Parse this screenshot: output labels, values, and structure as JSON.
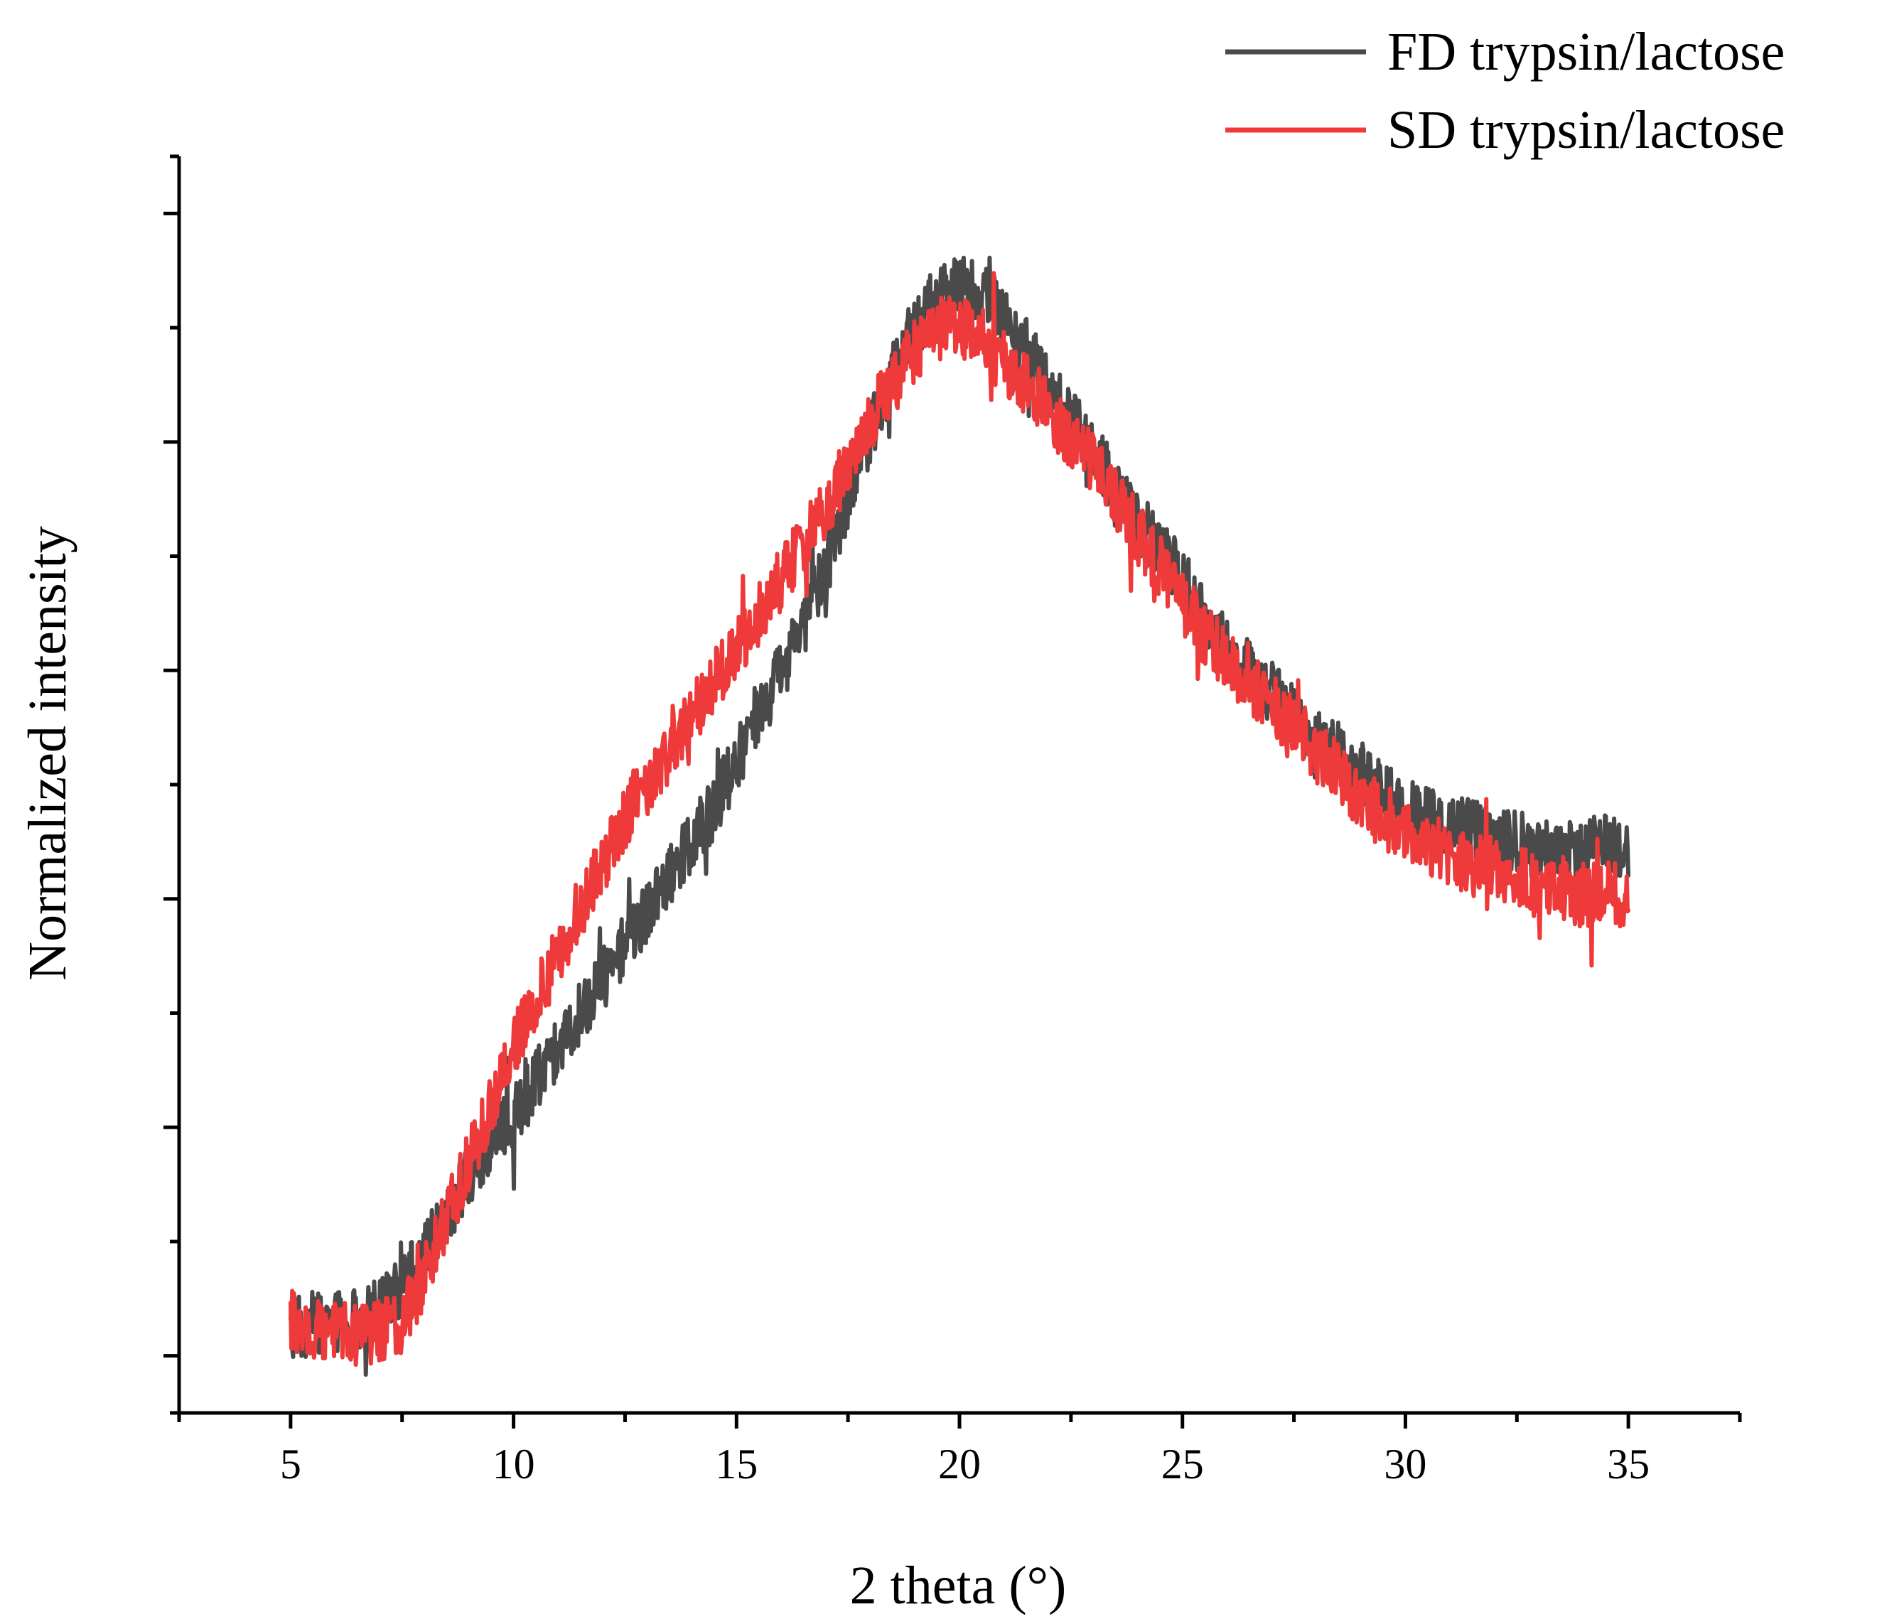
{
  "chart_data": {
    "type": "line",
    "xlabel": "2 theta (°)",
    "ylabel": "Normalized intensity",
    "xlim": [
      2.5,
      37.5
    ],
    "ylim": [
      -0.05,
      1.05
    ],
    "x_ticks": [
      "5",
      "10",
      "15",
      "20",
      "25",
      "30",
      "35"
    ],
    "y_ticks_labeled": false,
    "grid": false,
    "legend_position": "top-right",
    "series": [
      {
        "name": "FD trypsin/lactose",
        "color": "#4a4a4a",
        "noise": 0.028,
        "x": [
          5,
          5.5,
          6,
          6.5,
          7,
          7.5,
          8,
          8.5,
          9,
          9.5,
          10,
          10.5,
          11,
          11.5,
          12,
          12.5,
          13,
          13.5,
          14,
          14.5,
          15,
          15.5,
          16,
          16.5,
          17,
          17.5,
          18,
          18.5,
          19,
          19.5,
          20,
          20.5,
          21,
          21.5,
          22,
          22.5,
          23,
          23.5,
          24,
          24.5,
          25,
          25.5,
          26,
          26.5,
          27,
          27.5,
          28,
          28.5,
          29,
          29.5,
          30,
          30.5,
          31,
          31.5,
          32,
          32.5,
          33,
          33.5,
          34,
          34.5,
          35
        ],
        "y": [
          0.02,
          0.03,
          0.03,
          0.03,
          0.04,
          0.06,
          0.09,
          0.12,
          0.16,
          0.19,
          0.21,
          0.24,
          0.27,
          0.3,
          0.33,
          0.36,
          0.39,
          0.42,
          0.45,
          0.48,
          0.52,
          0.56,
          0.6,
          0.64,
          0.69,
          0.75,
          0.81,
          0.86,
          0.9,
          0.93,
          0.94,
          0.93,
          0.91,
          0.88,
          0.85,
          0.82,
          0.79,
          0.76,
          0.73,
          0.71,
          0.68,
          0.65,
          0.62,
          0.6,
          0.58,
          0.56,
          0.54,
          0.53,
          0.51,
          0.49,
          0.48,
          0.47,
          0.46,
          0.46,
          0.45,
          0.45,
          0.44,
          0.44,
          0.44,
          0.45,
          0.44
        ]
      },
      {
        "name": "SD trypsin/lactose",
        "color": "#ee3a3a",
        "noise": 0.028,
        "x": [
          5,
          5.5,
          6,
          6.5,
          7,
          7.5,
          8,
          8.5,
          9,
          9.5,
          10,
          10.5,
          11,
          11.5,
          12,
          12.5,
          13,
          13.5,
          14,
          14.5,
          15,
          15.5,
          16,
          16.5,
          17,
          17.5,
          18,
          18.5,
          19,
          19.5,
          20,
          20.5,
          21,
          21.5,
          22,
          22.5,
          23,
          23.5,
          24,
          24.5,
          25,
          25.5,
          26,
          26.5,
          27,
          27.5,
          28,
          28.5,
          29,
          29.5,
          30,
          30.5,
          31,
          31.5,
          32,
          32.5,
          33,
          33.5,
          34,
          34.5,
          35
        ],
        "y": [
          0.03,
          0.02,
          0.02,
          0.02,
          0.02,
          0.03,
          0.07,
          0.12,
          0.17,
          0.22,
          0.27,
          0.31,
          0.35,
          0.39,
          0.43,
          0.47,
          0.5,
          0.53,
          0.56,
          0.59,
          0.62,
          0.65,
          0.68,
          0.71,
          0.74,
          0.78,
          0.82,
          0.85,
          0.88,
          0.9,
          0.9,
          0.89,
          0.87,
          0.85,
          0.83,
          0.8,
          0.78,
          0.75,
          0.72,
          0.69,
          0.66,
          0.63,
          0.61,
          0.59,
          0.57,
          0.55,
          0.53,
          0.51,
          0.49,
          0.47,
          0.46,
          0.45,
          0.44,
          0.43,
          0.43,
          0.42,
          0.41,
          0.41,
          0.4,
          0.41,
          0.4
        ]
      }
    ]
  }
}
